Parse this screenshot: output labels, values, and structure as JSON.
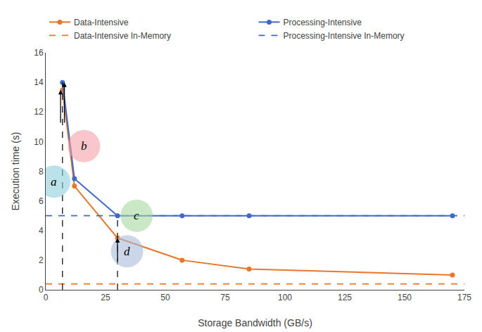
{
  "chart_data": {
    "type": "line",
    "x": [
      7,
      12,
      30,
      57,
      85,
      170
    ],
    "series": [
      {
        "name": "Data-Intensive",
        "color": "#E8762B",
        "values": [
          13.5,
          7.0,
          3.5,
          2.0,
          1.4,
          1.0
        ],
        "marker": "circle",
        "line_style": "solid"
      },
      {
        "name": "Processing-Intensive",
        "color": "#4169C8",
        "values": [
          14.0,
          7.5,
          5.0,
          5.0,
          5.0,
          5.0
        ],
        "marker": "circle",
        "line_style": "solid"
      }
    ],
    "hlines": [
      {
        "name": "Data-Intensive In-Memory",
        "color": "#E8762B",
        "y": 0.4,
        "line_style": "dashed"
      },
      {
        "name": "Processing-Intensive In-Memory",
        "color": "#4169C8",
        "y": 5.0,
        "line_style": "dashed"
      }
    ],
    "vlines": [
      {
        "x": 7,
        "y0": 0,
        "y1": 14.0,
        "color": "black",
        "line_style": "dashed"
      },
      {
        "x": 30,
        "y0": 0,
        "y1": 5.0,
        "color": "black",
        "line_style": "dashed"
      }
    ],
    "arrows": [
      {
        "x": 6.2,
        "y0": 11.2,
        "y1": 13.5,
        "color": "black"
      },
      {
        "x": 7.8,
        "y0": 11.2,
        "y1": 14.0,
        "color": "black"
      },
      {
        "x": 30,
        "y0": 1.8,
        "y1": 3.5,
        "color": "black"
      }
    ],
    "annotations": [
      {
        "text": "a",
        "x": 3.5,
        "y": 7.3,
        "color": "#8ECFDA"
      },
      {
        "text": "b",
        "x": 16,
        "y": 9.7,
        "color": "#F5A0A8"
      },
      {
        "text": "c",
        "x": 38,
        "y": 5.0,
        "color": "#A8D8A0"
      },
      {
        "text": "d",
        "x": 34,
        "y": 2.6,
        "color": "#A8BDD8"
      }
    ],
    "xlabel": "Storage Bandwidth (GB/s)",
    "ylabel": "Execution time (s)",
    "xlim": [
      0,
      175
    ],
    "ylim": [
      0,
      16
    ],
    "xticks": [
      0,
      25,
      50,
      75,
      100,
      125,
      150,
      175
    ],
    "yticks": [
      0,
      2,
      4,
      6,
      8,
      10,
      12,
      14,
      16
    ],
    "grid": false,
    "legend": "top"
  }
}
